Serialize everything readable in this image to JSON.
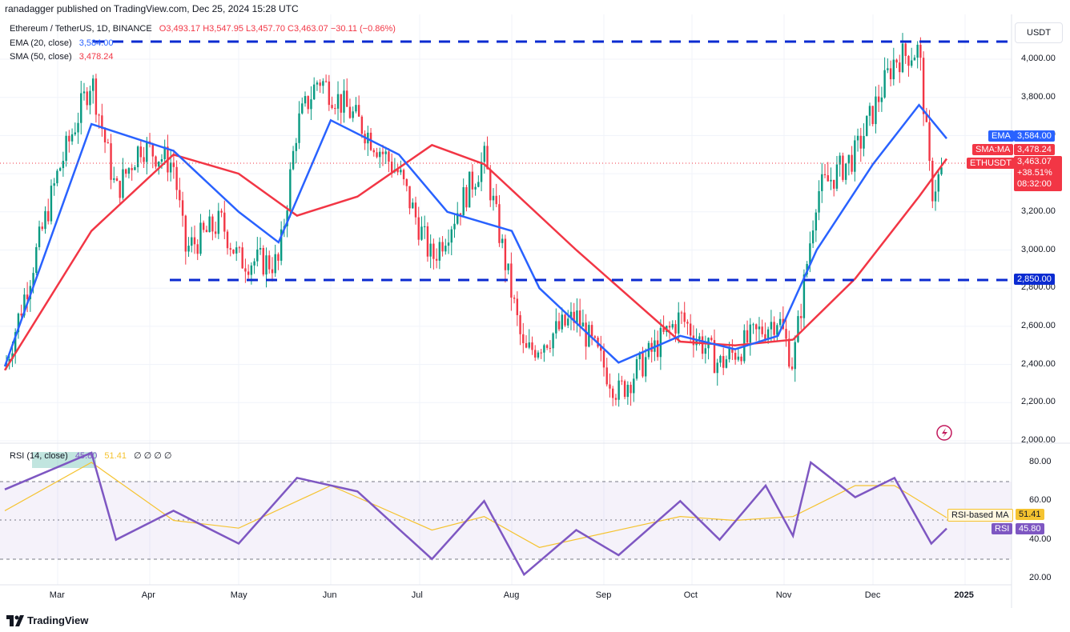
{
  "header": {
    "publisher": "ranadagger published on TradingView.com, Dec 25, 2024 15:28 UTC"
  },
  "legend": {
    "symbol": "Ethereum / TetherUS, 1D, BINANCE",
    "ohlc": "O3,493.17 H3,547.95 L3,457.70 C3,463.07 −30.11 (−0.86%)",
    "ema_label": "EMA (20, close)",
    "ema_value": "3,584.00",
    "sma_label": "SMA (50, close)",
    "sma_value": "3,478.24",
    "rsi_label": "RSI (14, close)",
    "rsi_value": "45.80",
    "rsi_ma_value": "51.41",
    "rsi_extra": "∅ ∅ ∅ ∅"
  },
  "currency": "USDT",
  "price_axis": [
    "4,000.00",
    "3,800.00",
    "3,600.00",
    "3,400.00",
    "3,200.00",
    "3,000.00",
    "2,800.00",
    "2,600.00",
    "2,400.00",
    "2,200.00",
    "2,000.00"
  ],
  "rsi_axis": [
    "80.00",
    "60.00",
    "40.00",
    "20.00"
  ],
  "time_axis": [
    "Mar",
    "Apr",
    "May",
    "Jun",
    "Jul",
    "Aug",
    "Sep",
    "Oct",
    "Nov",
    "Dec",
    "2025"
  ],
  "tags": {
    "ema_name": "EMA",
    "ema_val": "3,584.00",
    "sma_name": "SMA:MA",
    "sma_val": "3,478.24",
    "sym_name": "ETHUSDT",
    "sym_val": "3,463.07",
    "change": "+38.51%",
    "countdown": "08:32:00",
    "support": "2,850.00",
    "rsi_ma_name": "RSI-based MA",
    "rsi_ma_val": "51.41",
    "rsi_name": "RSI",
    "rsi_val": "45.80"
  },
  "footer": {
    "brand": "TradingView"
  },
  "colors": {
    "up": "#089981",
    "down": "#f23645",
    "ema": "#2962ff",
    "sma": "#f23645",
    "rsi": "#7e57c2",
    "rsi_ma": "#f5c330",
    "level": "#0b2bd1"
  },
  "chart_data": {
    "type": "candlestick",
    "ylim": [
      2000,
      4100
    ],
    "levels": [
      4100,
      2850
    ],
    "price_series": [
      {
        "x": "Feb 19",
        "close": 2380
      },
      {
        "x": "Mar 1",
        "close": 3400
      },
      {
        "x": "Mar 12",
        "close": 3900
      },
      {
        "x": "Mar 20",
        "close": 3300
      },
      {
        "x": "Mar 28",
        "close": 3550
      },
      {
        "x": "Apr 9",
        "close": 3450
      },
      {
        "x": "Apr 13",
        "close": 3000
      },
      {
        "x": "Apr 25",
        "close": 3150
      },
      {
        "x": "May 1",
        "close": 2950
      },
      {
        "x": "May 14",
        "close": 2930
      },
      {
        "x": "May 20",
        "close": 3650
      },
      {
        "x": "May 27",
        "close": 3900
      },
      {
        "x": "Jun 10",
        "close": 3680
      },
      {
        "x": "Jun 24",
        "close": 3400
      },
      {
        "x": "Jul 5",
        "close": 2950
      },
      {
        "x": "Jul 22",
        "close": 3480
      },
      {
        "x": "Aug 5",
        "close": 2450
      },
      {
        "x": "Aug 22",
        "close": 2650
      },
      {
        "x": "Sep 6",
        "close": 2250
      },
      {
        "x": "Sep 27",
        "close": 2650
      },
      {
        "x": "Oct 10",
        "close": 2400
      },
      {
        "x": "Oct 29",
        "close": 2650
      },
      {
        "x": "Nov 4",
        "close": 2400
      },
      {
        "x": "Nov 12",
        "close": 3300
      },
      {
        "x": "Nov 25",
        "close": 3500
      },
      {
        "x": "Dec 8",
        "close": 4000
      },
      {
        "x": "Dec 16",
        "close": 4050
      },
      {
        "x": "Dec 20",
        "close": 3300
      },
      {
        "x": "Dec 25",
        "close": 3463
      }
    ],
    "ema_series": [
      {
        "x": "Feb 19",
        "y": 2390
      },
      {
        "x": "Mar 12",
        "y": 3660
      },
      {
        "x": "Apr 9",
        "y": 3520
      },
      {
        "x": "May 1",
        "y": 3200
      },
      {
        "x": "May 14",
        "y": 3040
      },
      {
        "x": "Jun 1",
        "y": 3680
      },
      {
        "x": "Jun 24",
        "y": 3500
      },
      {
        "x": "Jul 10",
        "y": 3200
      },
      {
        "x": "Aug 1",
        "y": 3100
      },
      {
        "x": "Aug 10",
        "y": 2800
      },
      {
        "x": "Sep 6",
        "y": 2410
      },
      {
        "x": "Sep 27",
        "y": 2550
      },
      {
        "x": "Oct 15",
        "y": 2480
      },
      {
        "x": "Oct 29",
        "y": 2550
      },
      {
        "x": "Nov 12",
        "y": 3000
      },
      {
        "x": "Dec 1",
        "y": 3450
      },
      {
        "x": "Dec 16",
        "y": 3760
      },
      {
        "x": "Dec 25",
        "y": 3584
      }
    ],
    "sma_series": [
      {
        "x": "Feb 19",
        "y": 2370
      },
      {
        "x": "Mar 12",
        "y": 3100
      },
      {
        "x": "Apr 9",
        "y": 3500
      },
      {
        "x": "May 1",
        "y": 3400
      },
      {
        "x": "May 20",
        "y": 3180
      },
      {
        "x": "Jun 10",
        "y": 3280
      },
      {
        "x": "Jul 5",
        "y": 3550
      },
      {
        "x": "Jul 22",
        "y": 3450
      },
      {
        "x": "Aug 22",
        "y": 3000
      },
      {
        "x": "Sep 27",
        "y": 2520
      },
      {
        "x": "Oct 15",
        "y": 2500
      },
      {
        "x": "Nov 4",
        "y": 2530
      },
      {
        "x": "Nov 25",
        "y": 2850
      },
      {
        "x": "Dec 16",
        "y": 3280
      },
      {
        "x": "Dec 25",
        "y": 3478
      }
    ],
    "rsi": [
      {
        "x": "Feb 19",
        "y": 66
      },
      {
        "x": "Mar 12",
        "y": 85
      },
      {
        "x": "Mar 20",
        "y": 40
      },
      {
        "x": "Apr 9",
        "y": 55
      },
      {
        "x": "May 1",
        "y": 38
      },
      {
        "x": "May 20",
        "y": 72
      },
      {
        "x": "Jun 10",
        "y": 65
      },
      {
        "x": "Jul 5",
        "y": 30
      },
      {
        "x": "Jul 22",
        "y": 60
      },
      {
        "x": "Aug 5",
        "y": 22
      },
      {
        "x": "Aug 22",
        "y": 45
      },
      {
        "x": "Sep 6",
        "y": 32
      },
      {
        "x": "Sep 27",
        "y": 60
      },
      {
        "x": "Oct 10",
        "y": 40
      },
      {
        "x": "Oct 25",
        "y": 68
      },
      {
        "x": "Nov 4",
        "y": 42
      },
      {
        "x": "Nov 10",
        "y": 80
      },
      {
        "x": "Nov 25",
        "y": 62
      },
      {
        "x": "Dec 8",
        "y": 72
      },
      {
        "x": "Dec 20",
        "y": 38
      },
      {
        "x": "Dec 25",
        "y": 45.8
      }
    ],
    "rsi_ma": [
      {
        "x": "Feb 19",
        "y": 55
      },
      {
        "x": "Mar 12",
        "y": 80
      },
      {
        "x": "Apr 9",
        "y": 50
      },
      {
        "x": "May 1",
        "y": 46
      },
      {
        "x": "Jun 1",
        "y": 68
      },
      {
        "x": "Jul 5",
        "y": 45
      },
      {
        "x": "Jul 22",
        "y": 52
      },
      {
        "x": "Aug 10",
        "y": 36
      },
      {
        "x": "Sep 6",
        "y": 45
      },
      {
        "x": "Sep 27",
        "y": 52
      },
      {
        "x": "Oct 15",
        "y": 50
      },
      {
        "x": "Nov 4",
        "y": 52
      },
      {
        "x": "Nov 25",
        "y": 68
      },
      {
        "x": "Dec 8",
        "y": 68
      },
      {
        "x": "Dec 25",
        "y": 51.41
      }
    ]
  }
}
